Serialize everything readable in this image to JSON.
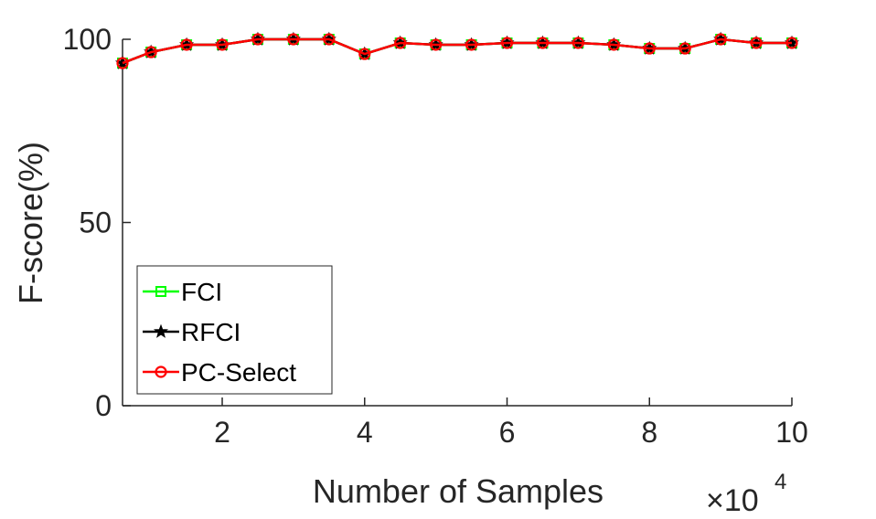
{
  "chart_data": {
    "type": "line",
    "xlabel": "Number of Samples",
    "ylabel": "F-score(%)",
    "x_multiplier": {
      "base": "×10",
      "exponent": "4"
    },
    "xlim": [
      0.6,
      10
    ],
    "ylim": [
      0,
      100
    ],
    "xticks": [
      2,
      4,
      6,
      8,
      10
    ],
    "yticks": [
      0,
      50,
      100
    ],
    "x": [
      0.6,
      1,
      1.5,
      2,
      2.5,
      3,
      3.5,
      4,
      4.5,
      5,
      5.5,
      6,
      6.5,
      7,
      7.5,
      8,
      8.5,
      9,
      9.5,
      10
    ],
    "series": [
      {
        "name": "FCI",
        "color": "#00ff00",
        "marker": "square",
        "values": [
          93.5,
          96.5,
          98.5,
          98.5,
          100,
          100,
          100,
          96,
          99,
          98.5,
          98.5,
          99,
          99,
          99,
          98.5,
          97.5,
          97.5,
          100,
          99,
          99
        ]
      },
      {
        "name": "RFCI",
        "color": "#000000",
        "marker": "star",
        "values": [
          93.5,
          96.5,
          98.5,
          98.5,
          100,
          100,
          100,
          96,
          99,
          98.5,
          98.5,
          99,
          99,
          99,
          98.5,
          97.5,
          97.5,
          100,
          99,
          99
        ]
      },
      {
        "name": "PC-Select",
        "color": "#ff0000",
        "marker": "circle",
        "values": [
          93.5,
          96.5,
          98.5,
          98.5,
          100,
          100,
          100,
          96,
          99,
          98.5,
          98.5,
          99,
          99,
          99,
          98.5,
          97.5,
          97.5,
          100,
          99,
          99
        ]
      }
    ],
    "legend_position": "bottom-left",
    "grid": false
  }
}
